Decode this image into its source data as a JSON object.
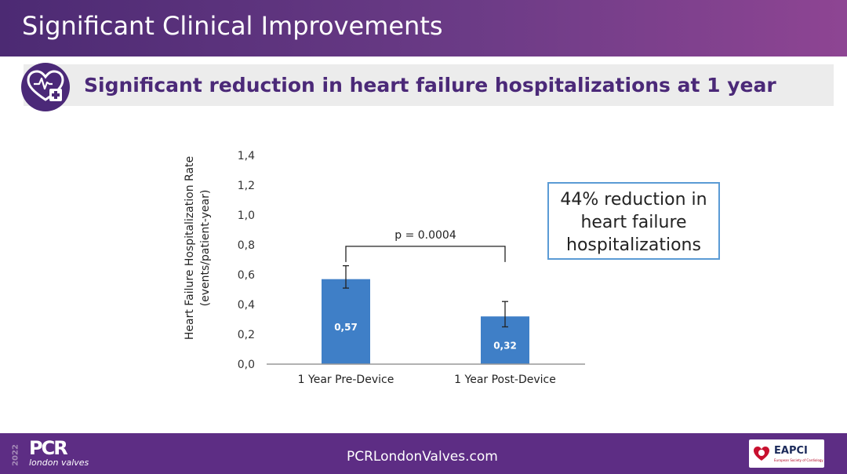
{
  "slide": {
    "title": "Significant Clinical Improvements",
    "subtitle": "Significant reduction in heart failure hospitalizations at 1 year"
  },
  "callout": {
    "line1": "44% reduction in",
    "line2": "heart failure",
    "line3": "hospitalizations"
  },
  "footer": {
    "url": "PCRLondonValves.com",
    "year": "2022",
    "logo": "PCR",
    "logo_sub": "london valves",
    "partner": "EAPCI",
    "partner_sub": "European Society of Cardiology"
  },
  "colors": {
    "bar": "#3f7fc7",
    "accent": "#4b2978",
    "callout_border": "#5b9bd5"
  },
  "chart_data": {
    "type": "bar",
    "categories": [
      "1 Year Pre-Device",
      "1 Year Post-Device"
    ],
    "values": [
      0.57,
      0.32
    ],
    "value_labels": [
      "0,57",
      "0,32"
    ],
    "error_bars": [
      [
        0.51,
        0.66
      ],
      [
        0.25,
        0.42
      ]
    ],
    "ylabel_line1": "Heart Failure Hospitalization Rate",
    "ylabel_line2": "(events/patient-year)",
    "ylim": [
      0,
      1.4
    ],
    "yticks": [
      0,
      0.2,
      0.4,
      0.6,
      0.8,
      1.0,
      1.2,
      1.4
    ],
    "ytick_labels": [
      "0,0",
      "0,2",
      "0,4",
      "0,6",
      "0,8",
      "1,0",
      "1,2",
      "1,4"
    ],
    "annotation": "p = 0.0004",
    "bracket_level": 0.79
  }
}
